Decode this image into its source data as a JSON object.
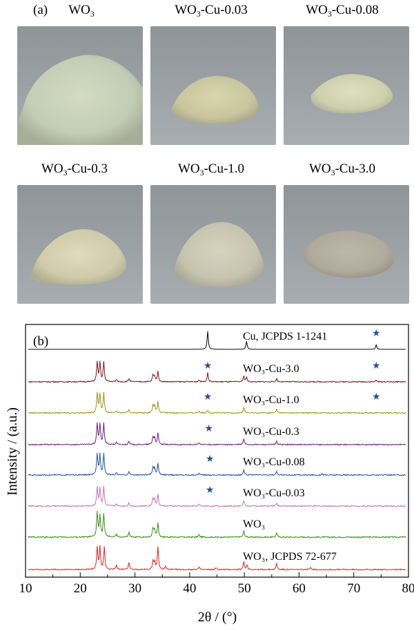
{
  "panel_a": {
    "label": "(a)",
    "samples": [
      {
        "name_main": "WO",
        "name_sub": "3",
        "name_rest": "",
        "tone": "#c3ccb4"
      },
      {
        "name_main": "WO",
        "name_sub": "3",
        "name_rest": "-Cu-0.03",
        "tone": "#c9c69f"
      },
      {
        "name_main": "WO",
        "name_sub": "3",
        "name_rest": "-Cu-0.08",
        "tone": "#cdd0ae"
      },
      {
        "name_main": "WO",
        "name_sub": "3",
        "name_rest": "-Cu-0.3",
        "tone": "#cfcbab"
      },
      {
        "name_main": "WO",
        "name_sub": "3",
        "name_rest": "-Cu-1.0",
        "tone": "#c6c3af"
      },
      {
        "name_main": "WO",
        "name_sub": "3",
        "name_rest": "-Cu-3.0",
        "tone": "#b0aa9d"
      }
    ]
  },
  "panel_b": {
    "label": "(b)",
    "star_color": "#2a4f97"
  },
  "chart_data": {
    "type": "line",
    "xlabel": "2θ / (°)",
    "ylabel": "Intensity / (a.u.)",
    "xlim": [
      10,
      80
    ],
    "xticks": [
      10,
      20,
      30,
      40,
      50,
      60,
      70,
      80
    ],
    "series": [
      {
        "name": "Cu, JCPDS 1-1241",
        "color": "#000000",
        "peaks": [
          [
            43.3,
            1.0
          ],
          [
            50.4,
            0.45
          ],
          [
            74.1,
            0.25
          ]
        ],
        "stars": [
          74.1
        ]
      },
      {
        "name": "WO₃-Cu-3.0",
        "color": "#7a1018",
        "peaks": [
          [
            23.1,
            0.9
          ],
          [
            23.6,
            0.85
          ],
          [
            24.3,
            0.9
          ],
          [
            26.6,
            0.1
          ],
          [
            28.9,
            0.15
          ],
          [
            33.3,
            0.3
          ],
          [
            33.6,
            0.25
          ],
          [
            34.2,
            0.45
          ],
          [
            41.7,
            0.08
          ],
          [
            43.3,
            0.4
          ],
          [
            49.9,
            0.25
          ],
          [
            50.4,
            0.2
          ],
          [
            55.9,
            0.15
          ],
          [
            74.1,
            0.06
          ]
        ],
        "stars": [
          43.3,
          74.1
        ]
      },
      {
        "name": "WO₃-Cu-1.0",
        "color": "#9a9218",
        "peaks": [
          [
            23.1,
            0.9
          ],
          [
            23.6,
            0.85
          ],
          [
            24.3,
            0.9
          ],
          [
            26.6,
            0.1
          ],
          [
            28.9,
            0.15
          ],
          [
            33.3,
            0.35
          ],
          [
            33.6,
            0.3
          ],
          [
            34.2,
            0.5
          ],
          [
            41.7,
            0.08
          ],
          [
            43.3,
            0.12
          ],
          [
            49.9,
            0.25
          ],
          [
            55.9,
            0.15
          ]
        ],
        "stars": [
          43.3,
          74.1
        ]
      },
      {
        "name": "WO₃-Cu-0.3",
        "color": "#6a1a7a",
        "peaks": [
          [
            23.1,
            0.95
          ],
          [
            23.6,
            0.9
          ],
          [
            24.3,
            0.95
          ],
          [
            26.6,
            0.1
          ],
          [
            28.9,
            0.15
          ],
          [
            33.3,
            0.35
          ],
          [
            33.6,
            0.3
          ],
          [
            34.2,
            0.5
          ],
          [
            41.7,
            0.08
          ],
          [
            49.9,
            0.25
          ],
          [
            55.9,
            0.15
          ]
        ],
        "stars": [
          43.5
        ]
      },
      {
        "name": "WO₃-Cu-0.08",
        "color": "#1f4fa0",
        "peaks": [
          [
            23.1,
            0.95
          ],
          [
            23.6,
            0.9
          ],
          [
            24.3,
            0.95
          ],
          [
            26.6,
            0.1
          ],
          [
            28.9,
            0.15
          ],
          [
            33.3,
            0.35
          ],
          [
            33.6,
            0.3
          ],
          [
            34.2,
            0.5
          ],
          [
            41.7,
            0.08
          ],
          [
            49.9,
            0.25
          ],
          [
            55.9,
            0.15
          ],
          [
            64.2,
            0.06
          ]
        ],
        "stars": [
          43.7
        ]
      },
      {
        "name": "WO₃-Cu-0.03",
        "color": "#c46fb6",
        "peaks": [
          [
            23.1,
            0.85
          ],
          [
            23.6,
            0.8
          ],
          [
            24.3,
            0.85
          ],
          [
            26.6,
            0.1
          ],
          [
            28.9,
            0.15
          ],
          [
            33.3,
            0.35
          ],
          [
            33.6,
            0.3
          ],
          [
            34.2,
            0.5
          ],
          [
            41.7,
            0.08
          ],
          [
            49.9,
            0.25
          ],
          [
            55.9,
            0.15
          ]
        ],
        "stars": [
          43.7
        ]
      },
      {
        "name": "WO₃",
        "color": "#3a8a1a",
        "peaks": [
          [
            23.1,
            1.0
          ],
          [
            23.6,
            0.85
          ],
          [
            24.3,
            0.95
          ],
          [
            26.6,
            0.1
          ],
          [
            28.9,
            0.18
          ],
          [
            33.3,
            0.35
          ],
          [
            33.6,
            0.3
          ],
          [
            34.2,
            0.55
          ],
          [
            41.7,
            0.1
          ],
          [
            49.9,
            0.25
          ],
          [
            55.9,
            0.18
          ]
        ],
        "stars": []
      },
      {
        "name": "WO₃, JCPDS 72-677",
        "color": "#e02020",
        "peaks": [
          [
            23.1,
            1.0
          ],
          [
            23.6,
            1.0
          ],
          [
            24.4,
            1.0
          ],
          [
            26.6,
            0.2
          ],
          [
            28.9,
            0.3
          ],
          [
            33.3,
            0.4
          ],
          [
            33.6,
            0.3
          ],
          [
            34.2,
            1.0
          ],
          [
            35.6,
            0.15
          ],
          [
            41.7,
            0.1
          ],
          [
            44.8,
            0.08
          ],
          [
            49.9,
            0.35
          ],
          [
            50.5,
            0.2
          ],
          [
            55.9,
            0.3
          ],
          [
            62.1,
            0.12
          ]
        ],
        "stars": []
      }
    ]
  }
}
